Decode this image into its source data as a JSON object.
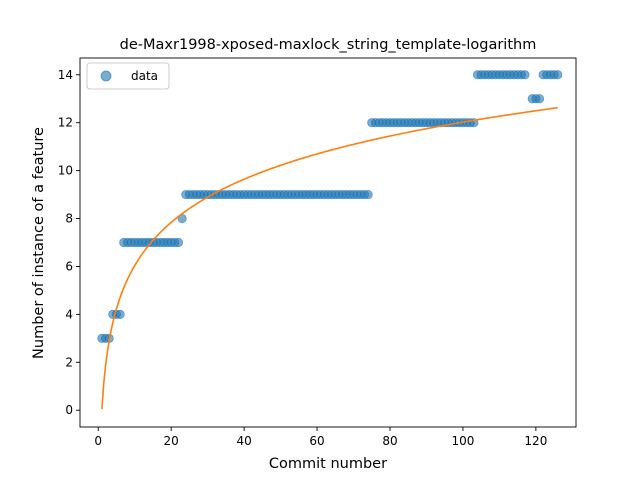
{
  "colors": {
    "data_marker": "#1f77b4",
    "fit_line": "#ff7f0e"
  },
  "chart_data": {
    "type": "scatter",
    "title": "de-Maxr1998-xposed-maxlock_string_template-logarithm",
    "xlabel": "Commit number",
    "ylabel": "Number of instance of a feature",
    "xlim": [
      -5,
      131
    ],
    "ylim": [
      -0.7,
      14.7
    ],
    "xticks": [
      0,
      20,
      40,
      60,
      80,
      100,
      120
    ],
    "yticks": [
      0,
      2,
      4,
      6,
      8,
      10,
      12,
      14
    ],
    "legend": {
      "location": "top-left",
      "entries": [
        "data"
      ]
    },
    "grid": false,
    "series": [
      {
        "name": "data",
        "kind": "scatter",
        "x": [
          1,
          2,
          3,
          4,
          5,
          6,
          7,
          8,
          9,
          10,
          11,
          12,
          13,
          14,
          15,
          16,
          17,
          18,
          19,
          20,
          21,
          22,
          23,
          24,
          25,
          26,
          27,
          28,
          29,
          30,
          31,
          32,
          33,
          34,
          35,
          36,
          37,
          38,
          39,
          40,
          41,
          42,
          43,
          44,
          45,
          46,
          47,
          48,
          49,
          50,
          51,
          52,
          53,
          54,
          55,
          56,
          57,
          58,
          59,
          60,
          61,
          62,
          63,
          64,
          65,
          66,
          67,
          68,
          69,
          70,
          71,
          72,
          73,
          74,
          75,
          76,
          77,
          78,
          79,
          80,
          81,
          82,
          83,
          84,
          85,
          86,
          87,
          88,
          89,
          90,
          91,
          92,
          93,
          94,
          95,
          96,
          97,
          98,
          99,
          100,
          101,
          102,
          103,
          104,
          105,
          106,
          107,
          108,
          109,
          110,
          111,
          112,
          113,
          114,
          115,
          116,
          117,
          119,
          120,
          121,
          122,
          123,
          124,
          125,
          126
        ],
        "y": [
          3,
          3,
          3,
          4,
          4,
          4,
          7,
          7,
          7,
          7,
          7,
          7,
          7,
          7,
          7,
          7,
          7,
          7,
          7,
          7,
          7,
          7,
          8,
          9,
          9,
          9,
          9,
          9,
          9,
          9,
          9,
          9,
          9,
          9,
          9,
          9,
          9,
          9,
          9,
          9,
          9,
          9,
          9,
          9,
          9,
          9,
          9,
          9,
          9,
          9,
          9,
          9,
          9,
          9,
          9,
          9,
          9,
          9,
          9,
          9,
          9,
          9,
          9,
          9,
          9,
          9,
          9,
          9,
          9,
          9,
          9,
          9,
          9,
          9,
          12,
          12,
          12,
          12,
          12,
          12,
          12,
          12,
          12,
          12,
          12,
          12,
          12,
          12,
          12,
          12,
          12,
          12,
          12,
          12,
          12,
          12,
          12,
          12,
          12,
          12,
          12,
          12,
          12,
          14,
          14,
          14,
          14,
          14,
          14,
          14,
          14,
          14,
          14,
          14,
          14,
          14,
          14,
          13,
          13,
          13,
          14,
          14,
          14,
          14,
          14
        ]
      },
      {
        "kind": "line",
        "model": "a + b*ln(x)",
        "coefficients": {
          "a": 0.05,
          "b": 2.6
        },
        "x_range": [
          1,
          126
        ]
      }
    ]
  }
}
